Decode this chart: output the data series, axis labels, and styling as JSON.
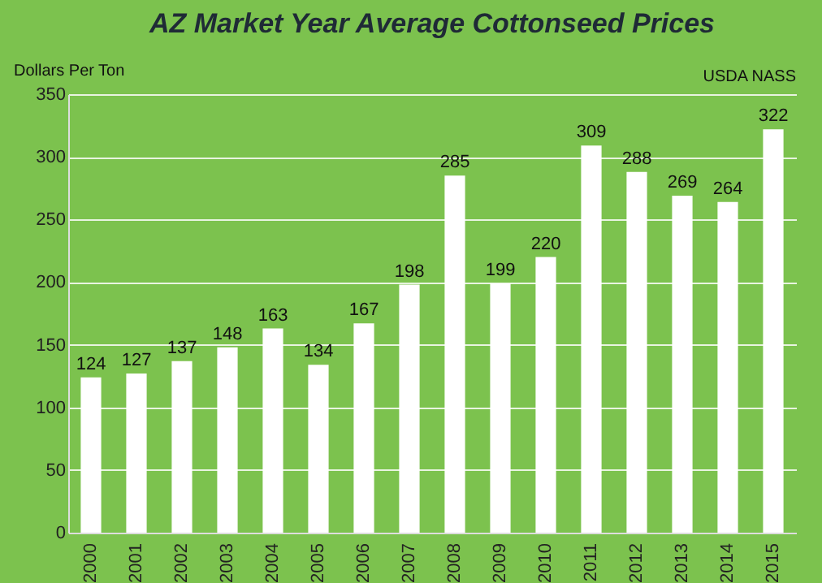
{
  "chart_data": {
    "type": "bar",
    "title": "AZ Market Year Average Cottonseed Prices",
    "ylabel": "Dollars Per Ton",
    "annotations": [
      "USDA NASS"
    ],
    "categories": [
      "2000",
      "2001",
      "2002",
      "2003",
      "2004",
      "2005",
      "2006",
      "2007",
      "2008",
      "2009",
      "2010",
      "2011",
      "2012",
      "2013",
      "2014",
      "2015"
    ],
    "values": [
      124,
      127,
      137,
      148,
      163,
      134,
      167,
      198,
      285,
      199,
      220,
      309,
      288,
      269,
      264,
      322
    ],
    "color": "#ffffff",
    "ylim": [
      0,
      350
    ],
    "yticks": [
      0,
      50,
      100,
      150,
      200,
      250,
      300,
      350
    ],
    "grid": "y",
    "data_labels": true
  }
}
